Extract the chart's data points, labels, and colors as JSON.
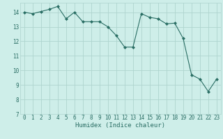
{
  "x": [
    0,
    1,
    2,
    3,
    4,
    5,
    6,
    7,
    8,
    9,
    10,
    11,
    12,
    13,
    14,
    15,
    16,
    17,
    18,
    19,
    20,
    21,
    22,
    23
  ],
  "y": [
    14.0,
    13.9,
    14.05,
    14.2,
    14.4,
    13.55,
    14.0,
    13.35,
    13.35,
    13.35,
    13.0,
    12.4,
    11.6,
    11.6,
    13.9,
    13.65,
    13.55,
    13.2,
    13.25,
    12.2,
    9.7,
    9.4,
    8.55,
    9.4
  ],
  "xlim": [
    -0.5,
    23.5
  ],
  "ylim": [
    7,
    14.65
  ],
  "yticks": [
    7,
    8,
    9,
    10,
    11,
    12,
    13,
    14
  ],
  "xticks": [
    0,
    1,
    2,
    3,
    4,
    5,
    6,
    7,
    8,
    9,
    10,
    11,
    12,
    13,
    14,
    15,
    16,
    17,
    18,
    19,
    20,
    21,
    22,
    23
  ],
  "xlabel": "Humidex (Indice chaleur)",
  "line_color": "#2a6e64",
  "marker": "D",
  "marker_size": 2.0,
  "linewidth": 0.8,
  "bg_color": "#ceeee9",
  "grid_color": "#aed4ce",
  "xlabel_fontsize": 6.5,
  "tick_fontsize": 5.5
}
